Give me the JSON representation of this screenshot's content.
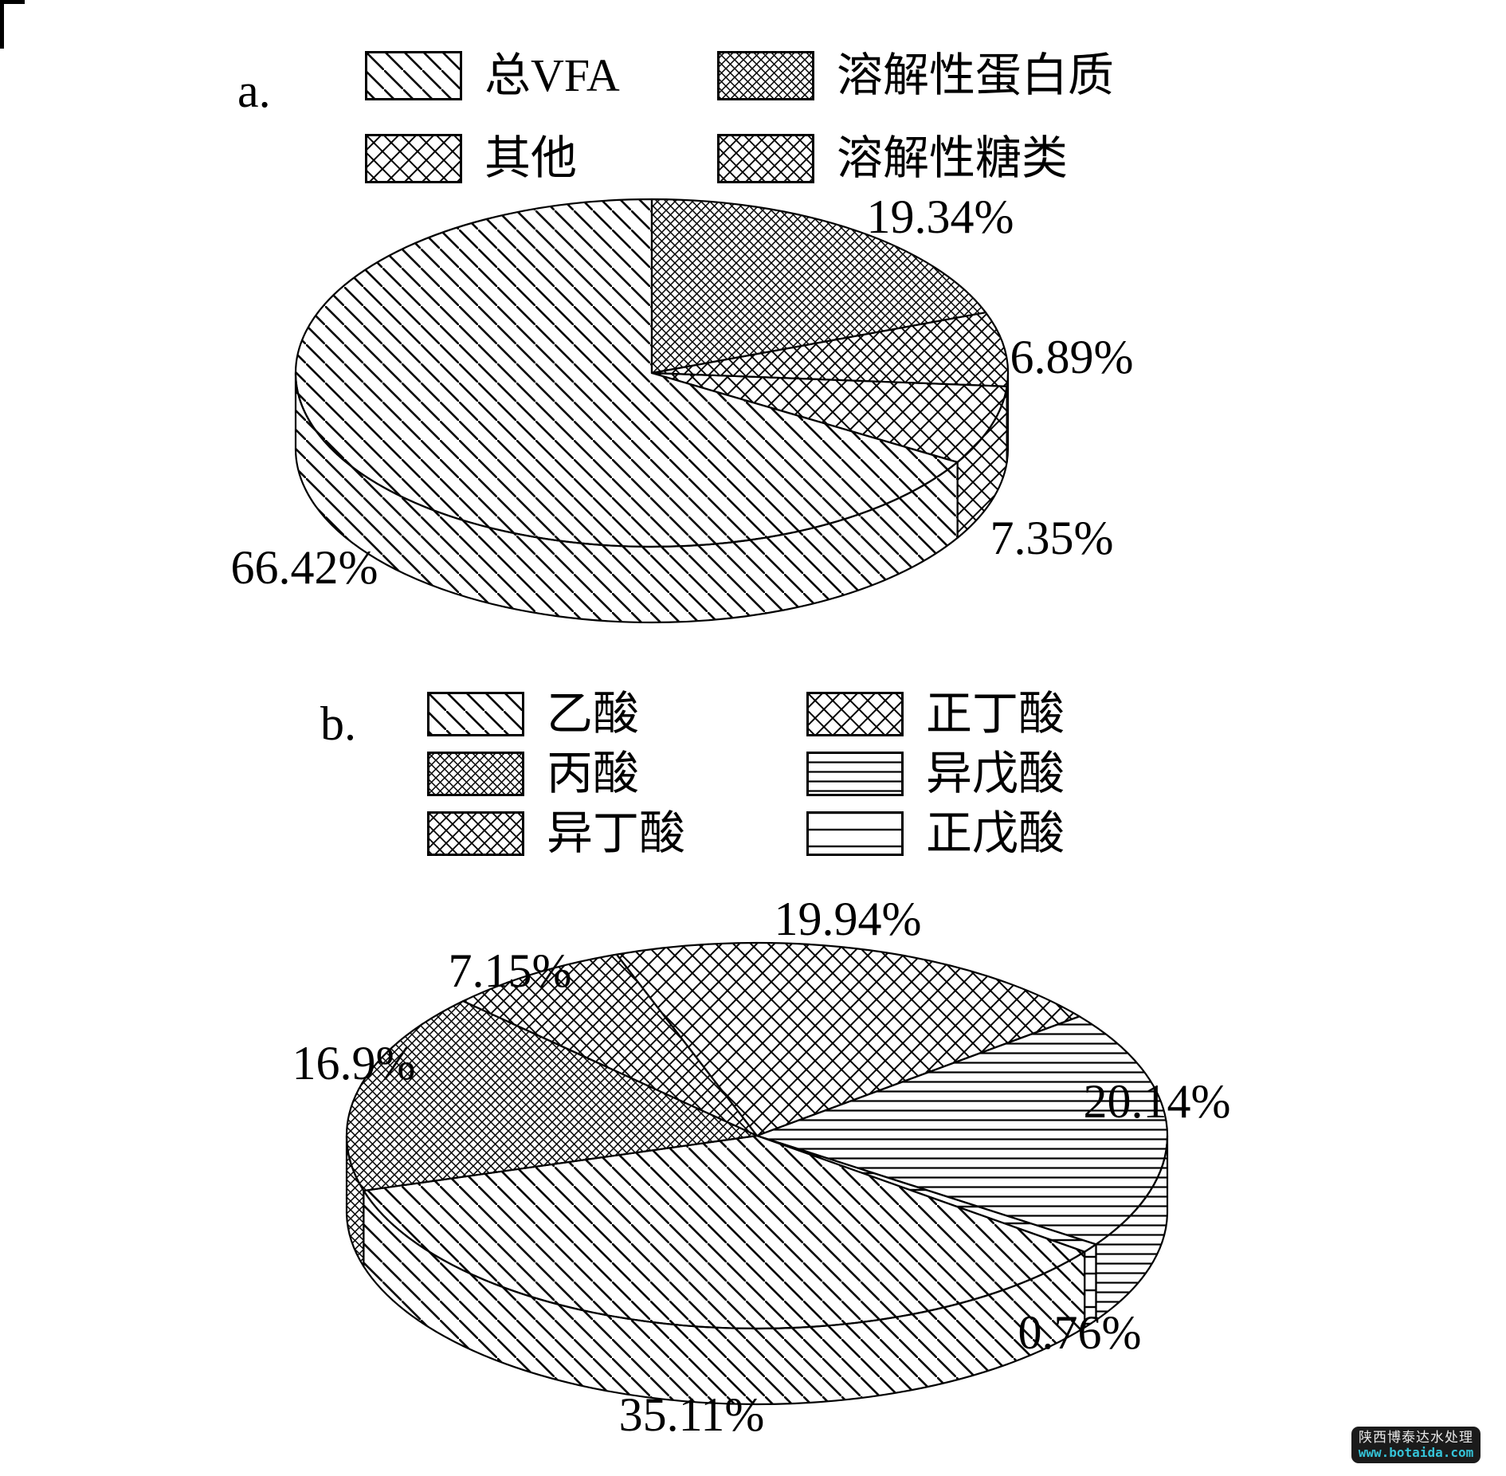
{
  "page": {
    "background": "#ffffff",
    "ink": "#000000"
  },
  "chart_data": [
    {
      "id": "a",
      "type": "pie",
      "style": "3d",
      "panel_label": "a.",
      "direction": "clockwise",
      "start_angle_deg": 0,
      "legend_position": "top",
      "legend_items": [
        {
          "label": "总VFA",
          "pattern": "diagonal-hatch"
        },
        {
          "label": "溶解性蛋白质",
          "pattern": "fine-crosshatch"
        },
        {
          "label": "其他",
          "pattern": "large-crosshatch"
        },
        {
          "label": "溶解性糖类",
          "pattern": "medium-crosshatch"
        }
      ],
      "slices": [
        {
          "label": "溶解性蛋白质",
          "value": 19.34,
          "display": "19.34%",
          "pattern": "fine-crosshatch"
        },
        {
          "label": "溶解性糖类",
          "value": 6.89,
          "display": "6.89%",
          "pattern": "medium-crosshatch"
        },
        {
          "label": "其他",
          "value": 7.35,
          "display": "7.35%",
          "pattern": "large-crosshatch"
        },
        {
          "label": "总VFA",
          "value": 66.42,
          "display": "66.42%",
          "pattern": "diagonal-hatch"
        }
      ]
    },
    {
      "id": "b",
      "type": "pie",
      "style": "3d",
      "panel_label": "b.",
      "direction": "clockwise",
      "start_angle_deg": -20,
      "legend_position": "top",
      "legend_items": [
        {
          "label": "乙酸",
          "pattern": "diagonal-hatch"
        },
        {
          "label": "正丁酸",
          "pattern": "large-crosshatch"
        },
        {
          "label": "丙酸",
          "pattern": "fine-crosshatch"
        },
        {
          "label": "异戊酸",
          "pattern": "dense-hlines"
        },
        {
          "label": "异丁酸",
          "pattern": "medium-crosshatch"
        },
        {
          "label": "正戊酸",
          "pattern": "sparse-hlines"
        }
      ],
      "slices": [
        {
          "label": "正丁酸",
          "value": 19.94,
          "display": "19.94%",
          "pattern": "large-crosshatch"
        },
        {
          "label": "异戊酸",
          "value": 20.14,
          "display": "20.14%",
          "pattern": "dense-hlines"
        },
        {
          "label": "正戊酸",
          "value": 0.76,
          "display": "0.76%",
          "pattern": "sparse-hlines"
        },
        {
          "label": "乙酸",
          "value": 35.11,
          "display": "35.11%",
          "pattern": "diagonal-hatch"
        },
        {
          "label": "丙酸",
          "value": 16.9,
          "display": "16.9%",
          "pattern": "fine-crosshatch"
        },
        {
          "label": "异丁酸",
          "value": 7.15,
          "display": "7.15%",
          "pattern": "medium-crosshatch"
        }
      ]
    }
  ],
  "watermark": {
    "line1": "陕西博泰达水处理",
    "line2": "www.botaida.com",
    "bg": "#1b1b1b",
    "line1_color": "#e8e8e8",
    "line2_color": "#35c3d7"
  }
}
